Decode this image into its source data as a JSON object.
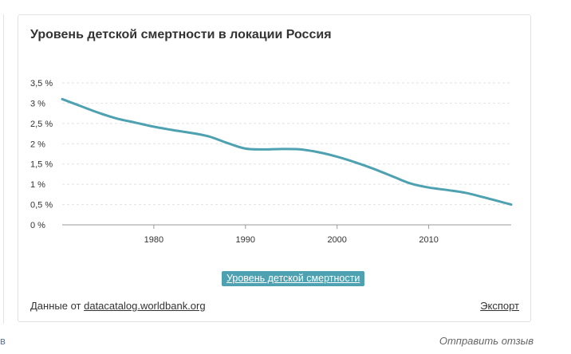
{
  "left_fragment": "в",
  "card": {
    "title": "Уровень детской смертности в локации Россия",
    "series_button": "Уровень детской смертности",
    "source_prefix": "Данные от",
    "source_link": "datacatalog.worldbank.org",
    "export_label": "Экспорт"
  },
  "feedback_label": "Отправить отзыв",
  "colors": {
    "line": "#4da1b0",
    "grid": "#e2e2e2",
    "axis": "#9a9a9a"
  },
  "chart_data": {
    "type": "line",
    "title": "Уровень детской смертности в локации Россия",
    "xlabel": "",
    "ylabel": "",
    "xlim": [
      1970,
      2019
    ],
    "ylim": [
      0,
      3.5
    ],
    "x_ticks": [
      1980,
      1990,
      2000,
      2010
    ],
    "x_tick_labels": [
      "1980",
      "1990",
      "2000",
      "2010"
    ],
    "y_ticks": [
      0,
      0.5,
      1,
      1.5,
      2,
      2.5,
      3,
      3.5
    ],
    "y_tick_labels": [
      "0 %",
      "0,5 %",
      "1 %",
      "1,5 %",
      "2 %",
      "2,5 %",
      "3 %",
      "3,5 %"
    ],
    "grid": true,
    "series": [
      {
        "name": "Уровень детской смертности",
        "x": [
          1970,
          1972,
          1974,
          1976,
          1978,
          1980,
          1982,
          1984,
          1986,
          1988,
          1990,
          1992,
          1994,
          1996,
          1998,
          2000,
          2002,
          2004,
          2006,
          2008,
          2010,
          2012,
          2014,
          2016,
          2019
        ],
        "values": [
          3.1,
          2.93,
          2.76,
          2.62,
          2.52,
          2.42,
          2.34,
          2.27,
          2.18,
          2.02,
          1.88,
          1.86,
          1.87,
          1.86,
          1.79,
          1.68,
          1.54,
          1.38,
          1.2,
          1.02,
          0.92,
          0.86,
          0.79,
          0.68,
          0.5
        ]
      }
    ]
  }
}
